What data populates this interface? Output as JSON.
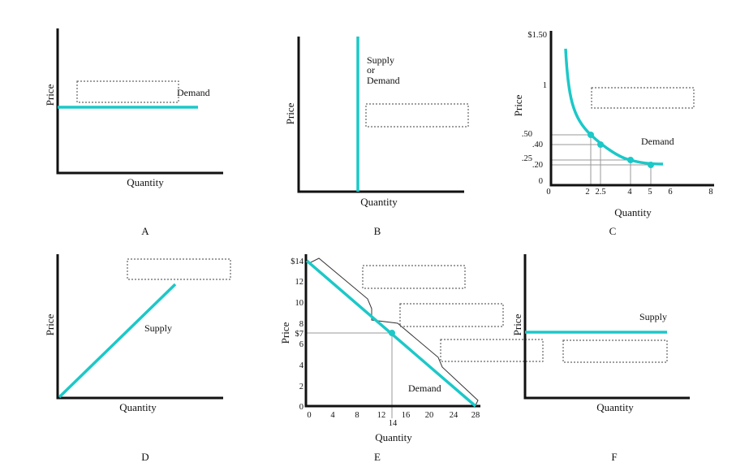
{
  "panels": [
    {
      "letter": "A",
      "y_label": "Price",
      "x_label": "Quantity",
      "curve_label": "Demand"
    },
    {
      "letter": "B",
      "y_label": "Price",
      "x_label": "Quantity",
      "curve_label": [
        "Supply",
        "or",
        "Demand"
      ]
    },
    {
      "letter": "C",
      "y_label": "Price",
      "x_label": "Quantity",
      "curve_label": "Demand",
      "y_tick_labels": [
        "$1.50",
        "1",
        ".50",
        ".40",
        ".25",
        ".20",
        "0"
      ],
      "x_tick_labels": [
        "0",
        "2",
        "2.5",
        "4",
        "5",
        "6",
        "8"
      ]
    },
    {
      "letter": "D",
      "y_label": "Price",
      "x_label": "Quantity",
      "curve_label": "Supply"
    },
    {
      "letter": "E",
      "y_label": "Price",
      "x_label": "Quantity",
      "curve_label": "Demand",
      "y_tick_labels": [
        "$14",
        "12",
        "10",
        "8",
        "$7",
        "6",
        "4",
        "2",
        "0"
      ],
      "x_tick_labels": [
        "0",
        "4",
        "8",
        "12",
        "14",
        "16",
        "20",
        "24",
        "28"
      ]
    },
    {
      "letter": "F",
      "y_label": "Price",
      "x_label": "Quantity",
      "curve_label": "Supply"
    }
  ]
}
